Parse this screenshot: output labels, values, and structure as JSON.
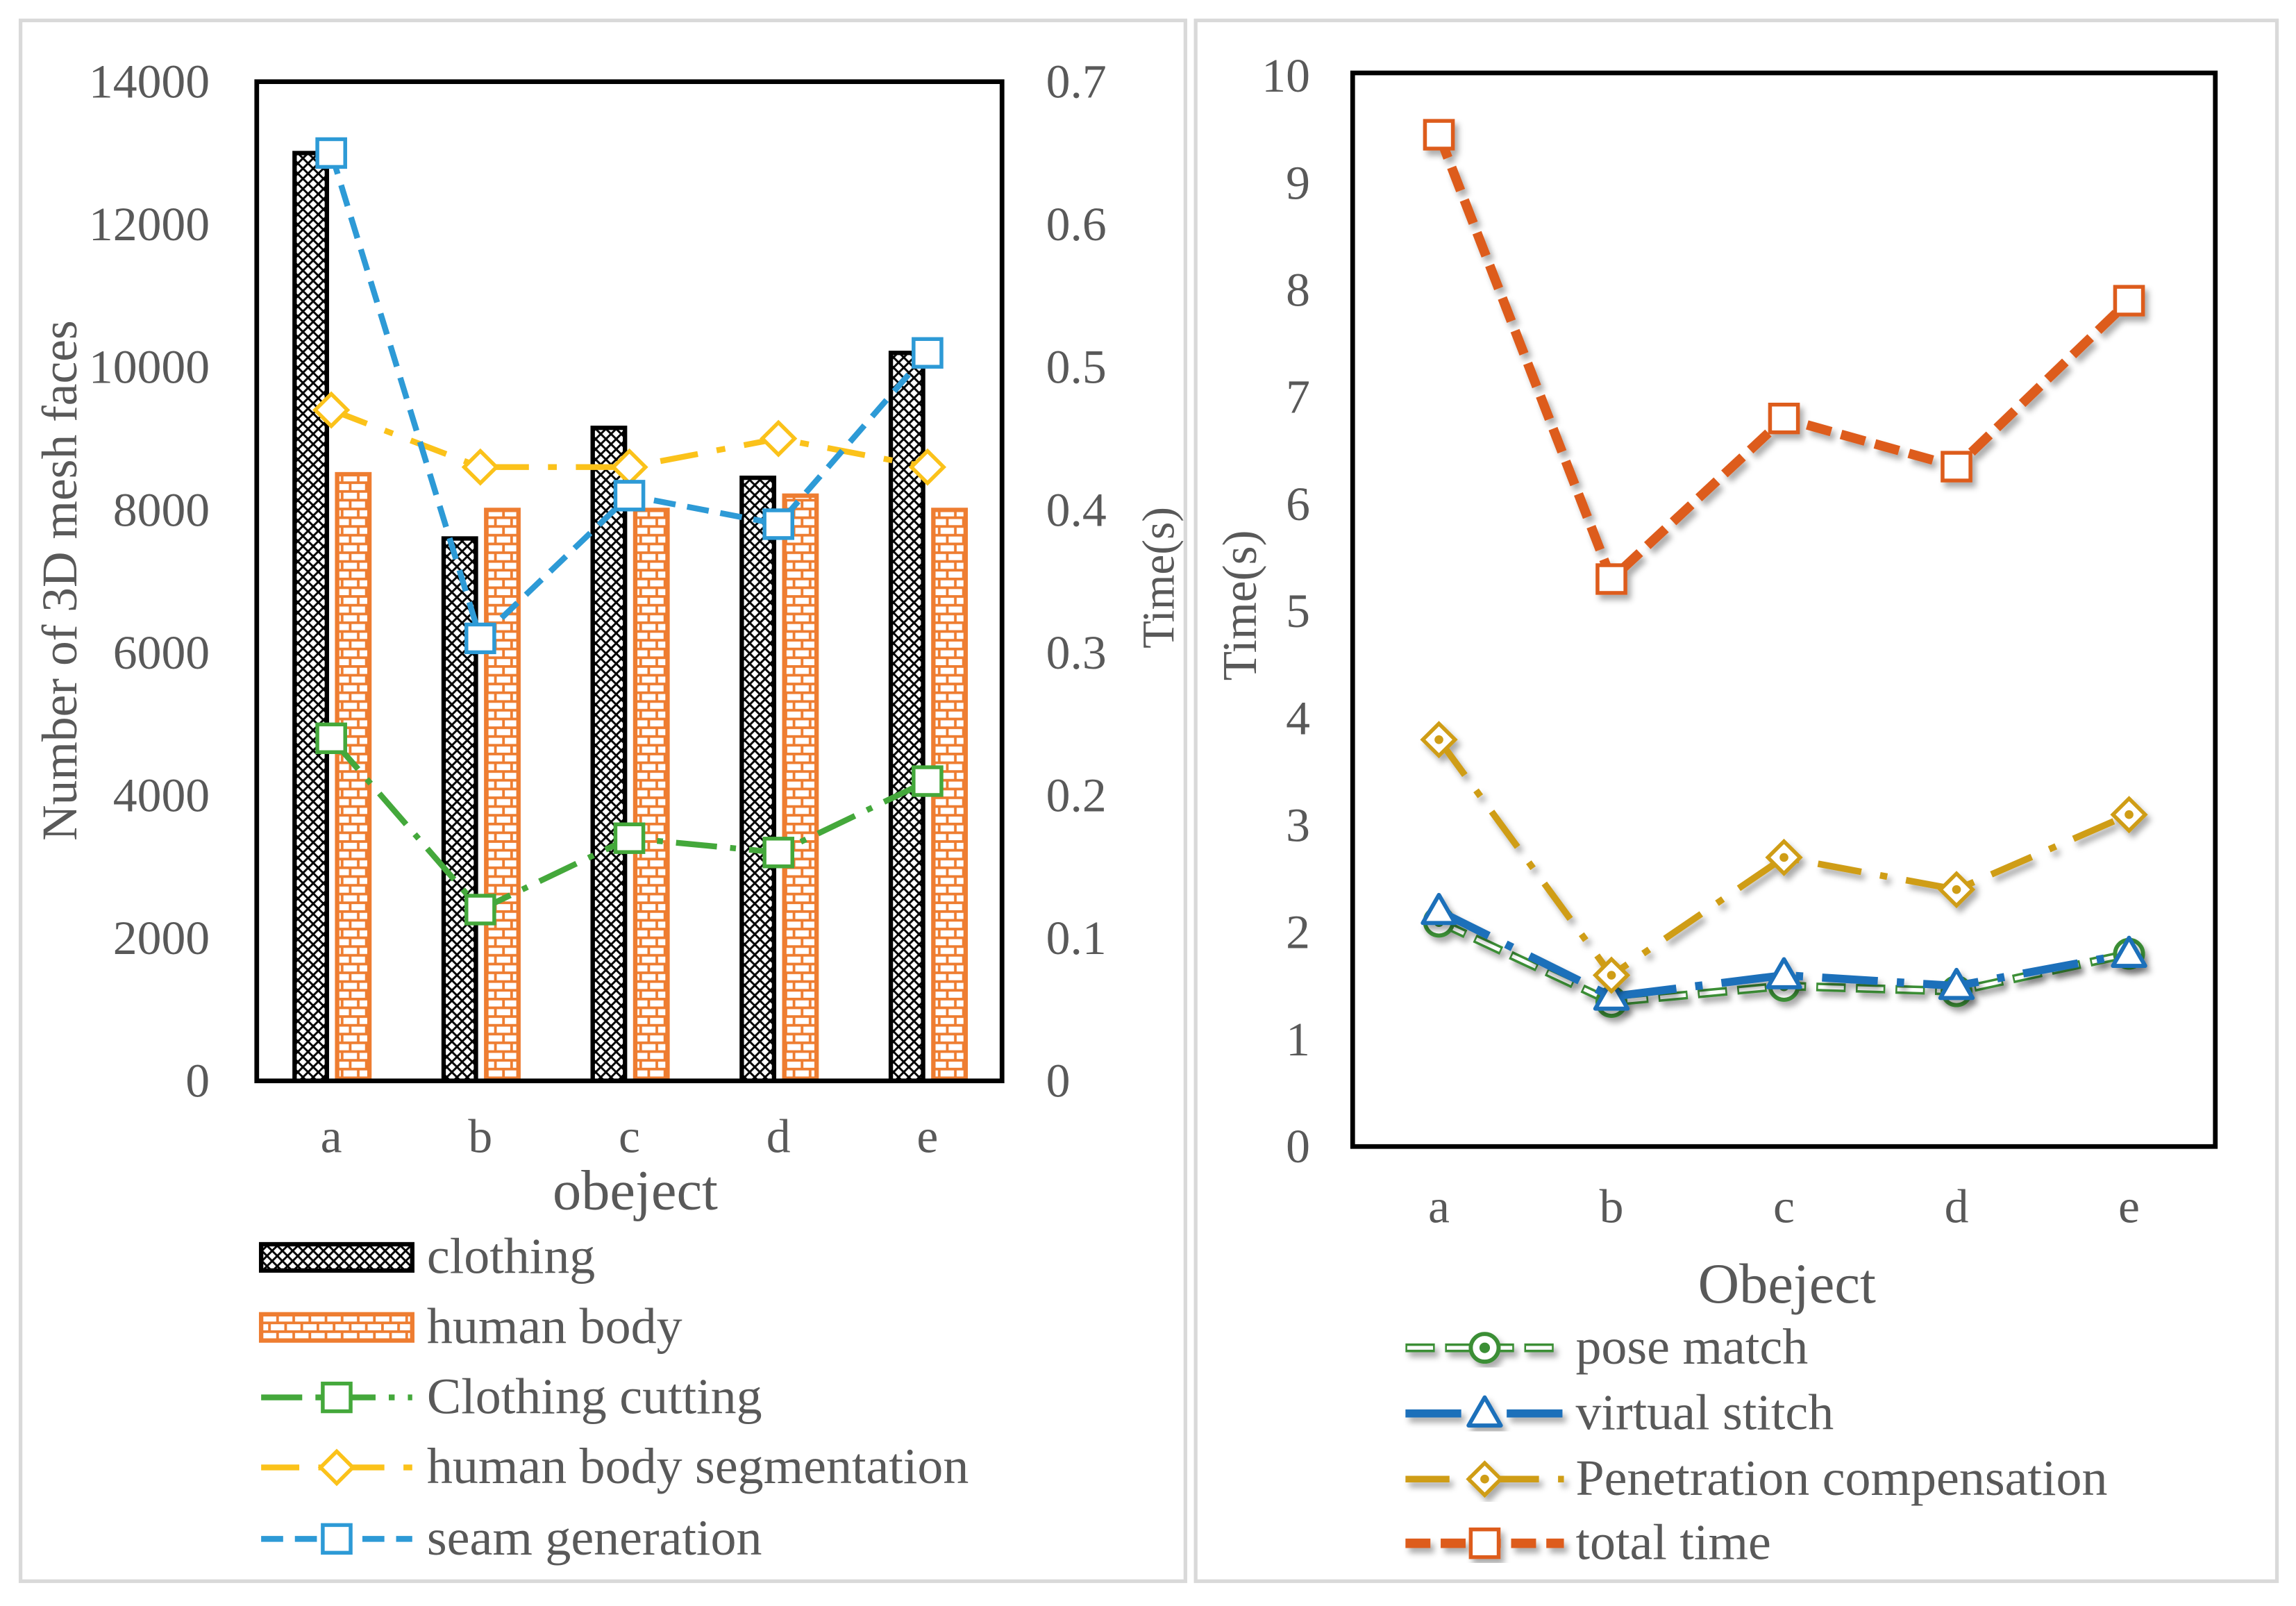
{
  "chart_data": [
    {
      "type": "bar",
      "xlabel": "obeject",
      "ylabel": "Number of 3D mesh faces",
      "y2label": "Time(s)",
      "categories": [
        "a",
        "b",
        "c",
        "d",
        "e"
      ],
      "ylim": [
        0,
        14000
      ],
      "y_ticks": [
        "0",
        "2000",
        "4000",
        "6000",
        "8000",
        "10000",
        "12000",
        "14000"
      ],
      "y2lim": [
        0,
        0.7
      ],
      "y2_ticks": [
        "0",
        "0.1",
        "0.2",
        "0.3",
        "0.4",
        "0.5",
        "0.6",
        "0.7"
      ],
      "grid": false,
      "legend": "bottom",
      "series": [
        {
          "name": "clothing",
          "type": "bar",
          "color": "#000000",
          "values": [
            13000,
            7600,
            9150,
            8450,
            10200
          ]
        },
        {
          "name": "human body",
          "type": "bar",
          "color": "#ee7d31",
          "values": [
            8500,
            8000,
            8000,
            8200,
            8000
          ]
        },
        {
          "name": "Clothing cutting",
          "type": "line",
          "color": "#44a83b",
          "values": [
            0.24,
            0.12,
            0.17,
            0.16,
            0.21
          ]
        },
        {
          "name": "human body segmentation",
          "type": "line",
          "color": "#fbc21a",
          "values": [
            0.47,
            0.43,
            0.43,
            0.45,
            0.43
          ]
        },
        {
          "name": "seam generation",
          "type": "line",
          "color": "#2d9ad6",
          "values": [
            0.65,
            0.31,
            0.41,
            0.39,
            0.51
          ]
        }
      ]
    },
    {
      "type": "line",
      "xlabel": "Obeject",
      "ylabel": "Time(s)",
      "categories": [
        "a",
        "b",
        "c",
        "d",
        "e"
      ],
      "ylim": [
        0,
        10
      ],
      "y_ticks": [
        "0",
        "1",
        "2",
        "3",
        "4",
        "5",
        "6",
        "7",
        "8",
        "9",
        "10"
      ],
      "grid": false,
      "legend": "bottom",
      "series": [
        {
          "name": "pose match",
          "type": "line",
          "color": "#3b8e34",
          "values": [
            2.1,
            1.35,
            1.5,
            1.45,
            1.8
          ]
        },
        {
          "name": "virtual stitch",
          "type": "line",
          "color": "#1c6fba",
          "values": [
            2.2,
            1.4,
            1.6,
            1.5,
            1.8
          ]
        },
        {
          "name": "Penetration compensation",
          "type": "line",
          "color": "#cf9d18",
          "values": [
            3.8,
            1.6,
            2.7,
            2.4,
            3.1
          ]
        },
        {
          "name": "total time",
          "type": "line",
          "color": "#dd5c1c",
          "values": [
            9.45,
            5.3,
            6.8,
            6.35,
            7.9
          ]
        }
      ]
    }
  ]
}
